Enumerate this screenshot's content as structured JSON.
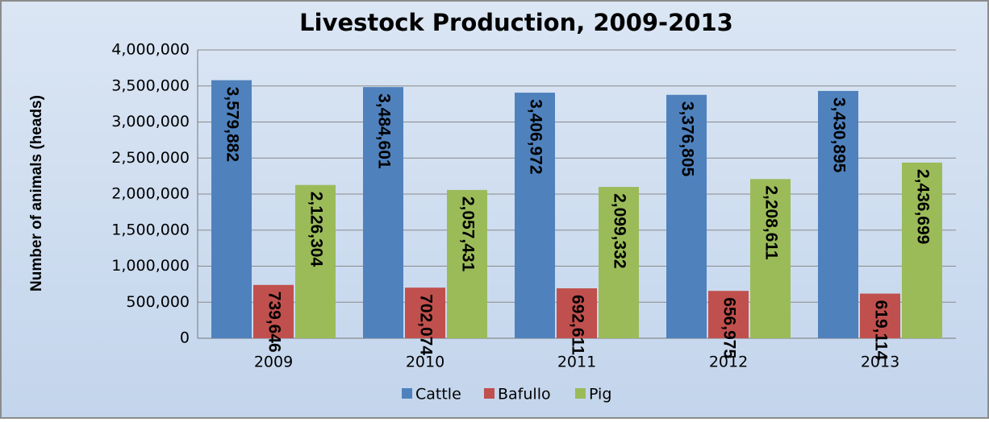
{
  "chart_data": {
    "type": "bar",
    "title": "Livestock Production, 2009-2013",
    "y_label": "Number of animals (heads)",
    "categories": [
      "2009",
      "2010",
      "2011",
      "2012",
      "2013"
    ],
    "series": [
      {
        "name": "Cattle",
        "color": "#4f81bd",
        "values": [
          3579882,
          3484601,
          3406972,
          3376805,
          3430895
        ],
        "value_labels": [
          "3,579,882",
          "3,484,601",
          "3,406,972",
          "3,376,805",
          "3,430,895"
        ]
      },
      {
        "name": "Bafullo",
        "color": "#c0504d",
        "values": [
          739646,
          702074,
          692611,
          656975,
          619114
        ],
        "value_labels": [
          "739,646",
          "702,074",
          "692,611",
          "656,975",
          "619,114"
        ]
      },
      {
        "name": "Pig",
        "color": "#9bbb59",
        "values": [
          2126304,
          2057431,
          2099332,
          2208611,
          2436699
        ],
        "value_labels": [
          "2,126,304",
          "2,057,431",
          "2,099,332",
          "2,208,611",
          "2,436,699"
        ]
      }
    ],
    "ylim": [
      0,
      4000000
    ],
    "yticks": [
      0,
      {
        "value": 500000,
        "label": "500,000"
      },
      {
        "value": 1000000,
        "label": "1,000,000"
      },
      {
        "value": 1500000,
        "label": "1,500,000"
      },
      {
        "value": 2000000,
        "label": "2,000,000"
      },
      {
        "value": 2500000,
        "label": "2,500,000"
      },
      {
        "value": 3000000,
        "label": "3,000,000"
      },
      {
        "value": 3500000,
        "label": "3,500,000"
      },
      {
        "value": 4000000,
        "label": "4,000,000"
      }
    ],
    "grid": true,
    "legend": "bottom"
  }
}
